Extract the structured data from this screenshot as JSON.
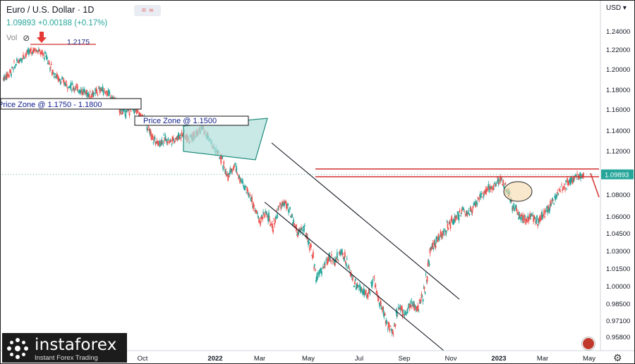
{
  "header": {
    "title": "Euro / U.S. Dollar · 1D",
    "price_change": "1.09893 +0.00188 (+0.17%)",
    "vol_label": "Vol",
    "currency": "USD"
  },
  "branding": {
    "logo_name": "instaforex",
    "logo_tagline": "Instant Forex Trading"
  },
  "chart_data": {
    "type": "candlestick",
    "symbol": "EURUSD",
    "timeframe": "1D",
    "last_price": 1.09893,
    "last_price_label": "1.09893",
    "y_axis_ticks": [
      "1.24000",
      "1.22000",
      "1.20000",
      "1.18000",
      "1.16000",
      "1.14000",
      "1.12000",
      "1.10000",
      "1.08000",
      "1.06000",
      "1.04500",
      "1.03000",
      "1.01500",
      "1.00000",
      "0.98500",
      "0.97100",
      "0.95800"
    ],
    "x_axis_ticks": [
      "Oct",
      "2022",
      "Mar",
      "May",
      "Jul",
      "Sep",
      "Nov",
      "2023",
      "Mar",
      "May"
    ],
    "price_path": [
      [
        0,
        1.192
      ],
      [
        3,
        1.198
      ],
      [
        6,
        1.207
      ],
      [
        9,
        1.214
      ],
      [
        12,
        1.218
      ],
      [
        15,
        1.221
      ],
      [
        17,
        1.2175
      ],
      [
        20,
        1.213
      ],
      [
        23,
        1.198
      ],
      [
        26,
        1.191
      ],
      [
        30,
        1.185
      ],
      [
        34,
        1.182
      ],
      [
        37,
        1.179
      ],
      [
        40,
        1.176
      ],
      [
        43,
        1.177
      ],
      [
        46,
        1.181
      ],
      [
        49,
        1.177
      ],
      [
        52,
        1.17
      ],
      [
        55,
        1.16
      ],
      [
        58,
        1.158
      ],
      [
        61,
        1.162
      ],
      [
        64,
        1.156
      ],
      [
        67,
        1.149
      ],
      [
        70,
        1.133
      ],
      [
        73,
        1.128
      ],
      [
        76,
        1.132
      ],
      [
        79,
        1.13
      ],
      [
        82,
        1.134
      ],
      [
        85,
        1.137
      ],
      [
        88,
        1.131
      ],
      [
        91,
        1.14
      ],
      [
        94,
        1.142
      ],
      [
        97,
        1.132
      ],
      [
        100,
        1.122
      ],
      [
        103,
        1.112
      ],
      [
        106,
        1.096
      ],
      [
        109,
        1.108
      ],
      [
        112,
        1.093
      ],
      [
        115,
        1.085
      ],
      [
        118,
        1.072
      ],
      [
        121,
        1.056
      ],
      [
        124,
        1.064
      ],
      [
        127,
        1.05
      ],
      [
        130,
        1.068
      ],
      [
        133,
        1.073
      ],
      [
        136,
        1.06
      ],
      [
        139,
        1.045
      ],
      [
        142,
        1.05
      ],
      [
        145,
        1.034
      ],
      [
        148,
        1.008
      ],
      [
        151,
        1.016
      ],
      [
        154,
        1.025
      ],
      [
        157,
        1.022
      ],
      [
        160,
        1.03
      ],
      [
        163,
        1.016
      ],
      [
        166,
        1.003
      ],
      [
        169,
        0.998
      ],
      [
        172,
        0.992
      ],
      [
        175,
        1.005
      ],
      [
        178,
        0.986
      ],
      [
        181,
        0.971
      ],
      [
        184,
        0.962
      ],
      [
        187,
        0.983
      ],
      [
        190,
        0.977
      ],
      [
        193,
        0.985
      ],
      [
        196,
        0.981
      ],
      [
        199,
        0.996
      ],
      [
        202,
        1.032
      ],
      [
        205,
        1.04
      ],
      [
        208,
        1.045
      ],
      [
        211,
        1.054
      ],
      [
        214,
        1.058
      ],
      [
        217,
        1.066
      ],
      [
        220,
        1.064
      ],
      [
        223,
        1.07
      ],
      [
        226,
        1.08
      ],
      [
        229,
        1.086
      ],
      [
        232,
        1.087
      ],
      [
        235,
        1.095
      ],
      [
        238,
        1.084
      ],
      [
        241,
        1.07
      ],
      [
        244,
        1.062
      ],
      [
        247,
        1.058
      ],
      [
        250,
        1.06
      ],
      [
        253,
        1.056
      ],
      [
        256,
        1.064
      ],
      [
        259,
        1.072
      ],
      [
        262,
        1.082
      ],
      [
        265,
        1.087
      ],
      [
        268,
        1.093
      ],
      [
        271,
        1.097
      ],
      [
        274,
        1.099
      ]
    ],
    "annotations": {
      "high_label": "1.2175",
      "zone1": "Price Zone @ 1.1750 - 1.1800",
      "zone2": "Price Zone @ 1.1500"
    },
    "colors": {
      "up": "#26a69a",
      "down": "#ef5350",
      "annotation": "#d32f2f",
      "channel": "#131722",
      "flag_fill": "#b2dfdb"
    }
  }
}
